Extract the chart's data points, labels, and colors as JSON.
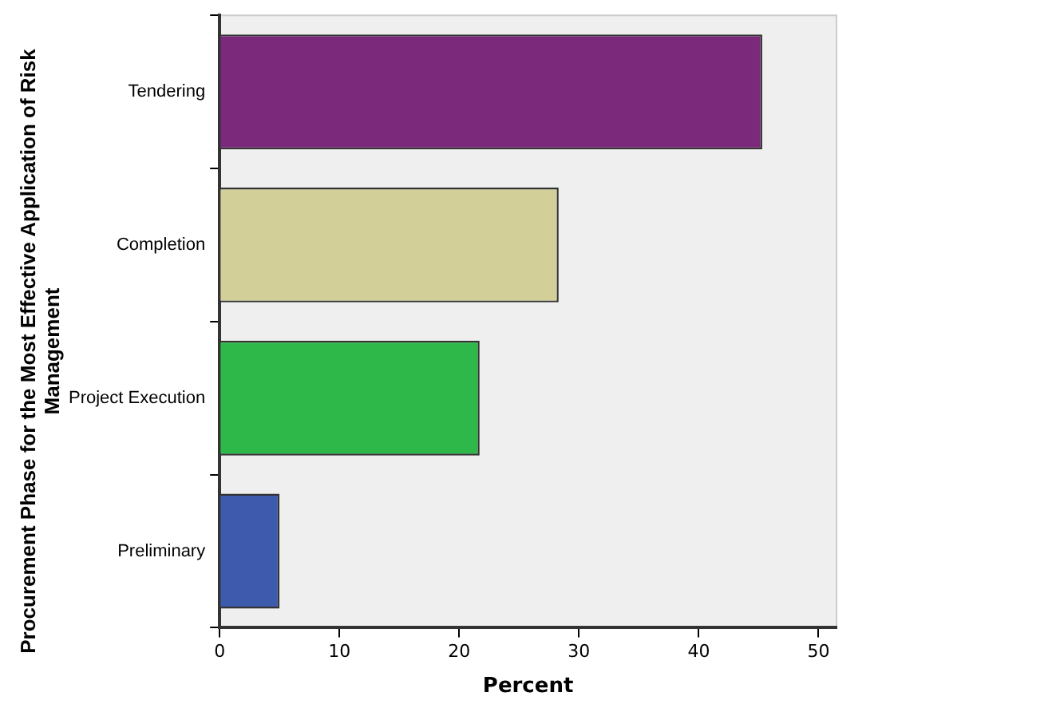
{
  "chart_data": {
    "type": "bar",
    "orientation": "horizontal",
    "xlabel": "Percent",
    "ylabel": "Procurement Phase for the Most Effective Application of Risk Management",
    "categories": [
      "Tendering",
      "Completion",
      "Project Execution",
      "Preliminary"
    ],
    "values": [
      45.3,
      28.3,
      21.7,
      5.0
    ],
    "colors": [
      "#7b2a7b",
      "#d3cf99",
      "#2fb84a",
      "#3d5aad"
    ],
    "xlim": [
      0,
      51.5
    ],
    "xticks": [
      0,
      10,
      20,
      30,
      40,
      50
    ],
    "grid": false,
    "legend": false
  }
}
